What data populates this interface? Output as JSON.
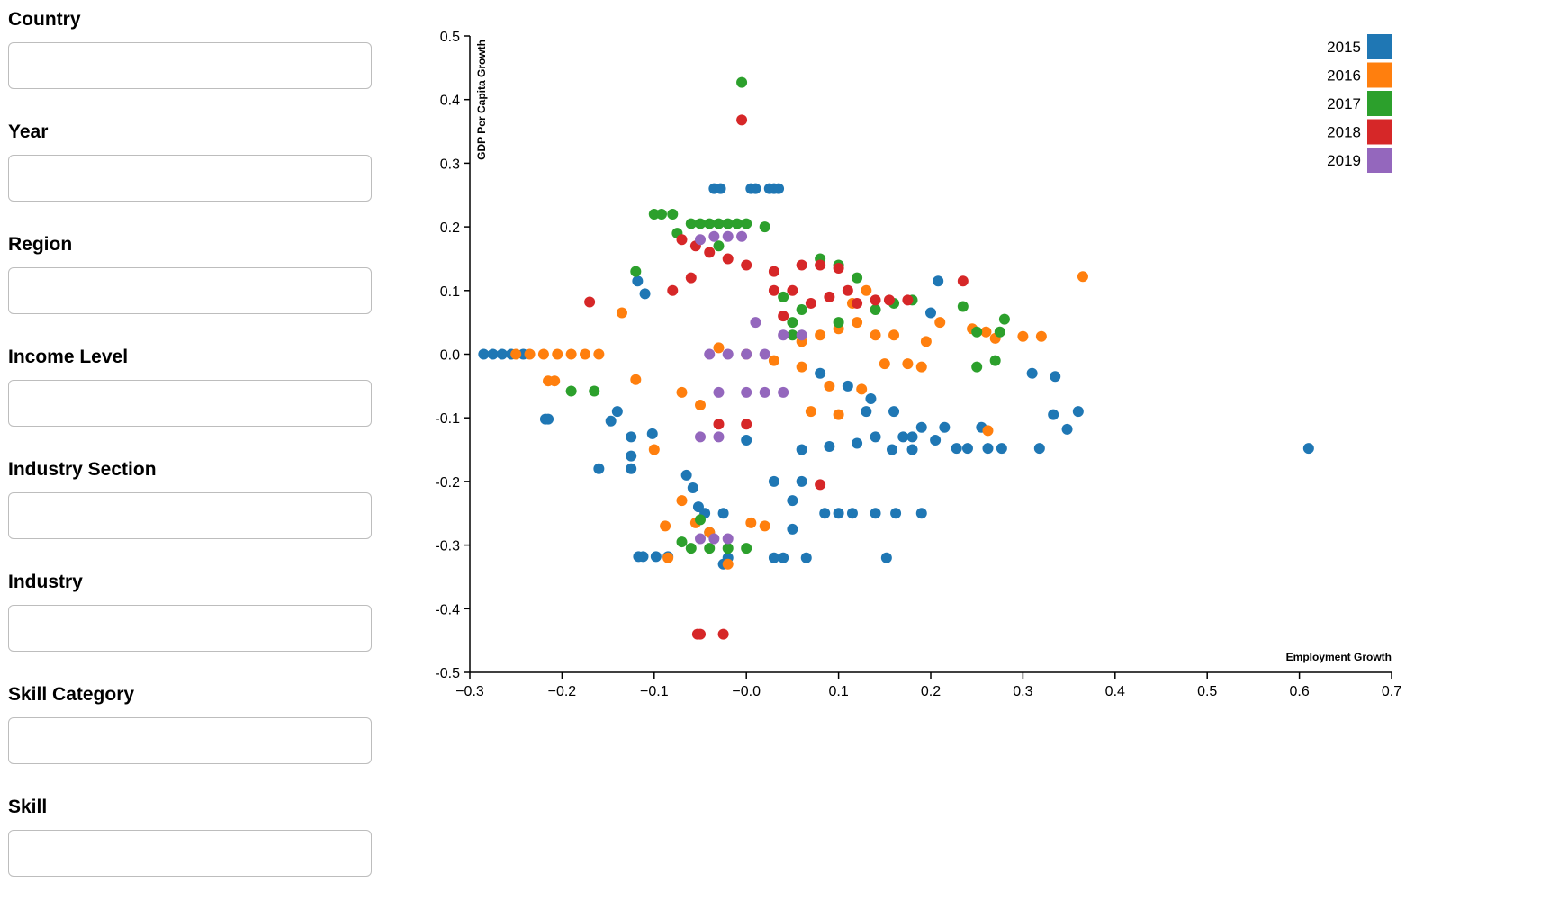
{
  "filters": [
    {
      "label": "Country",
      "value": ""
    },
    {
      "label": "Year",
      "value": ""
    },
    {
      "label": "Region",
      "value": ""
    },
    {
      "label": "Income Level",
      "value": ""
    },
    {
      "label": "Industry Section",
      "value": ""
    },
    {
      "label": "Industry",
      "value": ""
    },
    {
      "label": "Skill Category",
      "value": ""
    },
    {
      "label": "Skill",
      "value": ""
    }
  ],
  "chart_data": {
    "type": "scatter",
    "xlabel": "Employment Growth",
    "ylabel": "GDP Per Capita Growth",
    "xlim": [
      -0.3,
      0.7
    ],
    "ylim": [
      -0.5,
      0.5
    ],
    "xticks": [
      "−0.3",
      "−0.2",
      "−0.1",
      "−0.0",
      "0.1",
      "0.2",
      "0.3",
      "0.4",
      "0.5",
      "0.6",
      "0.7"
    ],
    "xtick_values": [
      -0.3,
      -0.2,
      -0.1,
      0.0,
      0.1,
      0.2,
      0.3,
      0.4,
      0.5,
      0.6,
      0.7
    ],
    "yticks": [
      "0.5",
      "0.4",
      "0.3",
      "0.2",
      "0.1",
      "0.0",
      "-0.1",
      "-0.2",
      "-0.3",
      "-0.4",
      "-0.5"
    ],
    "ytick_values": [
      0.5,
      0.4,
      0.3,
      0.2,
      0.1,
      0.0,
      -0.1,
      -0.2,
      -0.3,
      -0.4,
      -0.5
    ],
    "legend_position": "top-right",
    "grid": false,
    "series": [
      {
        "name": "2015",
        "color": "#1f77b4",
        "points": [
          [
            -0.285,
            0.0
          ],
          [
            -0.275,
            0.0
          ],
          [
            -0.265,
            0.0
          ],
          [
            -0.255,
            0.0
          ],
          [
            -0.242,
            0.0
          ],
          [
            -0.218,
            -0.102
          ],
          [
            -0.215,
            -0.102
          ],
          [
            -0.16,
            -0.18
          ],
          [
            -0.147,
            -0.105
          ],
          [
            -0.14,
            -0.09
          ],
          [
            -0.125,
            -0.16
          ],
          [
            -0.125,
            -0.13
          ],
          [
            -0.125,
            -0.18
          ],
          [
            -0.118,
            0.115
          ],
          [
            -0.117,
            -0.318
          ],
          [
            -0.112,
            -0.318
          ],
          [
            -0.11,
            0.095
          ],
          [
            -0.102,
            -0.125
          ],
          [
            -0.098,
            -0.318
          ],
          [
            -0.085,
            -0.318
          ],
          [
            -0.065,
            -0.19
          ],
          [
            -0.058,
            -0.21
          ],
          [
            -0.052,
            -0.24
          ],
          [
            -0.045,
            -0.25
          ],
          [
            -0.04,
            -0.28
          ],
          [
            -0.035,
            0.26
          ],
          [
            -0.028,
            0.26
          ],
          [
            -0.025,
            -0.33
          ],
          [
            -0.025,
            -0.25
          ],
          [
            -0.02,
            -0.32
          ],
          [
            0.005,
            0.26
          ],
          [
            0.01,
            0.26
          ],
          [
            0.025,
            0.26
          ],
          [
            0.03,
            0.26
          ],
          [
            0.035,
            0.26
          ],
          [
            0.03,
            -0.32
          ],
          [
            0.04,
            -0.32
          ],
          [
            0.05,
            -0.23
          ],
          [
            0.05,
            -0.275
          ],
          [
            0.065,
            -0.32
          ],
          [
            0.085,
            -0.25
          ],
          [
            0.1,
            -0.25
          ],
          [
            0.115,
            -0.25
          ],
          [
            0.14,
            -0.25
          ],
          [
            0.152,
            -0.32
          ],
          [
            0.162,
            -0.25
          ],
          [
            0.19,
            -0.25
          ],
          [
            0.158,
            -0.15
          ],
          [
            0.18,
            -0.15
          ],
          [
            0.19,
            -0.115
          ],
          [
            0.2,
            0.065
          ],
          [
            0.205,
            -0.135
          ],
          [
            0.208,
            0.115
          ],
          [
            0.215,
            -0.115
          ],
          [
            0.228,
            -0.148
          ],
          [
            0.24,
            -0.148
          ],
          [
            0.255,
            -0.115
          ],
          [
            0.262,
            -0.148
          ],
          [
            0.277,
            -0.148
          ],
          [
            0.31,
            -0.03
          ],
          [
            0.318,
            -0.148
          ],
          [
            0.333,
            -0.095
          ],
          [
            0.335,
            -0.035
          ],
          [
            0.348,
            -0.118
          ],
          [
            0.36,
            -0.09
          ],
          [
            0.61,
            -0.148
          ],
          [
            0.06,
            -0.15
          ],
          [
            0.09,
            -0.145
          ],
          [
            0.12,
            -0.14
          ],
          [
            0.14,
            -0.13
          ],
          [
            0.03,
            -0.2
          ],
          [
            0.06,
            -0.2
          ],
          [
            0.0,
            -0.135
          ],
          [
            0.08,
            -0.03
          ],
          [
            0.11,
            -0.05
          ],
          [
            0.13,
            -0.09
          ],
          [
            0.17,
            -0.13
          ],
          [
            0.18,
            -0.13
          ],
          [
            0.16,
            -0.09
          ],
          [
            0.135,
            -0.07
          ]
        ]
      },
      {
        "name": "2016",
        "color": "#ff7f0e",
        "points": [
          [
            -0.25,
            0.0
          ],
          [
            -0.235,
            0.0
          ],
          [
            -0.22,
            0.0
          ],
          [
            -0.205,
            0.0
          ],
          [
            -0.19,
            0.0
          ],
          [
            -0.175,
            0.0
          ],
          [
            -0.16,
            0.0
          ],
          [
            -0.215,
            -0.042
          ],
          [
            -0.208,
            -0.042
          ],
          [
            -0.135,
            0.065
          ],
          [
            -0.12,
            -0.04
          ],
          [
            -0.1,
            -0.15
          ],
          [
            -0.088,
            -0.27
          ],
          [
            -0.085,
            -0.32
          ],
          [
            -0.07,
            -0.23
          ],
          [
            -0.055,
            -0.265
          ],
          [
            -0.04,
            -0.28
          ],
          [
            -0.02,
            -0.33
          ],
          [
            0.005,
            -0.265
          ],
          [
            0.02,
            -0.27
          ],
          [
            0.07,
            -0.09
          ],
          [
            0.1,
            -0.095
          ],
          [
            0.125,
            -0.055
          ],
          [
            0.15,
            -0.015
          ],
          [
            0.175,
            -0.015
          ],
          [
            0.19,
            -0.02
          ],
          [
            0.195,
            0.02
          ],
          [
            0.21,
            0.05
          ],
          [
            0.245,
            0.04
          ],
          [
            0.26,
            0.035
          ],
          [
            0.262,
            -0.12
          ],
          [
            0.27,
            0.025
          ],
          [
            0.3,
            0.028
          ],
          [
            0.32,
            0.028
          ],
          [
            0.365,
            0.122
          ],
          [
            0.06,
            0.02
          ],
          [
            0.08,
            0.03
          ],
          [
            0.1,
            0.04
          ],
          [
            0.12,
            0.05
          ],
          [
            0.14,
            0.03
          ],
          [
            -0.03,
            0.01
          ],
          [
            0.0,
            0.0
          ],
          [
            0.03,
            -0.01
          ],
          [
            0.06,
            -0.02
          ],
          [
            0.09,
            -0.05
          ],
          [
            0.115,
            0.08
          ],
          [
            0.13,
            0.1
          ],
          [
            0.16,
            0.03
          ],
          [
            -0.07,
            -0.06
          ],
          [
            -0.05,
            -0.08
          ]
        ]
      },
      {
        "name": "2017",
        "color": "#2ca02c",
        "points": [
          [
            -0.19,
            -0.058
          ],
          [
            -0.165,
            -0.058
          ],
          [
            -0.12,
            0.13
          ],
          [
            -0.1,
            0.22
          ],
          [
            -0.092,
            0.22
          ],
          [
            -0.08,
            0.22
          ],
          [
            -0.075,
            0.19
          ],
          [
            -0.06,
            0.205
          ],
          [
            -0.05,
            0.205
          ],
          [
            -0.04,
            0.205
          ],
          [
            -0.03,
            0.205
          ],
          [
            -0.02,
            0.205
          ],
          [
            -0.01,
            0.205
          ],
          [
            0.0,
            0.205
          ],
          [
            0.02,
            0.2
          ],
          [
            -0.005,
            0.427
          ],
          [
            0.05,
            0.03
          ],
          [
            0.08,
            0.15
          ],
          [
            0.1,
            0.14
          ],
          [
            0.12,
            0.12
          ],
          [
            0.18,
            0.085
          ],
          [
            0.235,
            0.075
          ],
          [
            0.25,
            0.035
          ],
          [
            0.25,
            -0.02
          ],
          [
            0.27,
            -0.01
          ],
          [
            0.275,
            0.035
          ],
          [
            0.28,
            0.055
          ],
          [
            -0.06,
            -0.305
          ],
          [
            -0.04,
            -0.305
          ],
          [
            -0.02,
            -0.305
          ],
          [
            0.0,
            -0.305
          ],
          [
            -0.07,
            -0.295
          ],
          [
            -0.05,
            -0.26
          ],
          [
            0.05,
            0.05
          ],
          [
            0.1,
            0.05
          ],
          [
            0.14,
            0.07
          ],
          [
            0.16,
            0.08
          ],
          [
            0.06,
            0.07
          ],
          [
            0.04,
            0.09
          ],
          [
            -0.03,
            0.17
          ]
        ]
      },
      {
        "name": "2018",
        "color": "#d62728",
        "points": [
          [
            -0.17,
            0.082
          ],
          [
            -0.07,
            0.18
          ],
          [
            -0.055,
            0.17
          ],
          [
            -0.04,
            0.16
          ],
          [
            -0.02,
            0.15
          ],
          [
            0.0,
            0.14
          ],
          [
            0.03,
            0.13
          ],
          [
            0.06,
            0.14
          ],
          [
            0.08,
            0.14
          ],
          [
            0.1,
            0.135
          ],
          [
            0.12,
            0.08
          ],
          [
            0.14,
            0.085
          ],
          [
            0.155,
            0.085
          ],
          [
            0.175,
            0.085
          ],
          [
            0.235,
            0.115
          ],
          [
            -0.005,
            0.368
          ],
          [
            0.08,
            -0.205
          ],
          [
            -0.053,
            -0.44
          ],
          [
            -0.05,
            -0.44
          ],
          [
            -0.025,
            -0.44
          ],
          [
            0.03,
            0.1
          ],
          [
            0.05,
            0.1
          ],
          [
            0.07,
            0.08
          ],
          [
            0.09,
            0.09
          ],
          [
            0.11,
            0.1
          ],
          [
            0.0,
            -0.11
          ],
          [
            -0.03,
            -0.11
          ],
          [
            -0.06,
            0.12
          ],
          [
            -0.08,
            0.1
          ],
          [
            0.04,
            0.06
          ]
        ]
      },
      {
        "name": "2019",
        "color": "#9467bd",
        "points": [
          [
            -0.05,
            0.18
          ],
          [
            -0.035,
            0.185
          ],
          [
            -0.02,
            0.185
          ],
          [
            -0.005,
            0.185
          ],
          [
            -0.04,
            0.0
          ],
          [
            -0.02,
            0.0
          ],
          [
            0.0,
            0.0
          ],
          [
            0.02,
            0.0
          ],
          [
            0.04,
            0.03
          ],
          [
            0.06,
            0.03
          ],
          [
            0.01,
            0.05
          ],
          [
            -0.03,
            -0.06
          ],
          [
            0.0,
            -0.06
          ],
          [
            0.02,
            -0.06
          ],
          [
            0.04,
            -0.06
          ],
          [
            -0.05,
            -0.13
          ],
          [
            -0.03,
            -0.13
          ],
          [
            -0.05,
            -0.29
          ],
          [
            -0.035,
            -0.29
          ],
          [
            -0.02,
            -0.29
          ]
        ]
      }
    ]
  }
}
